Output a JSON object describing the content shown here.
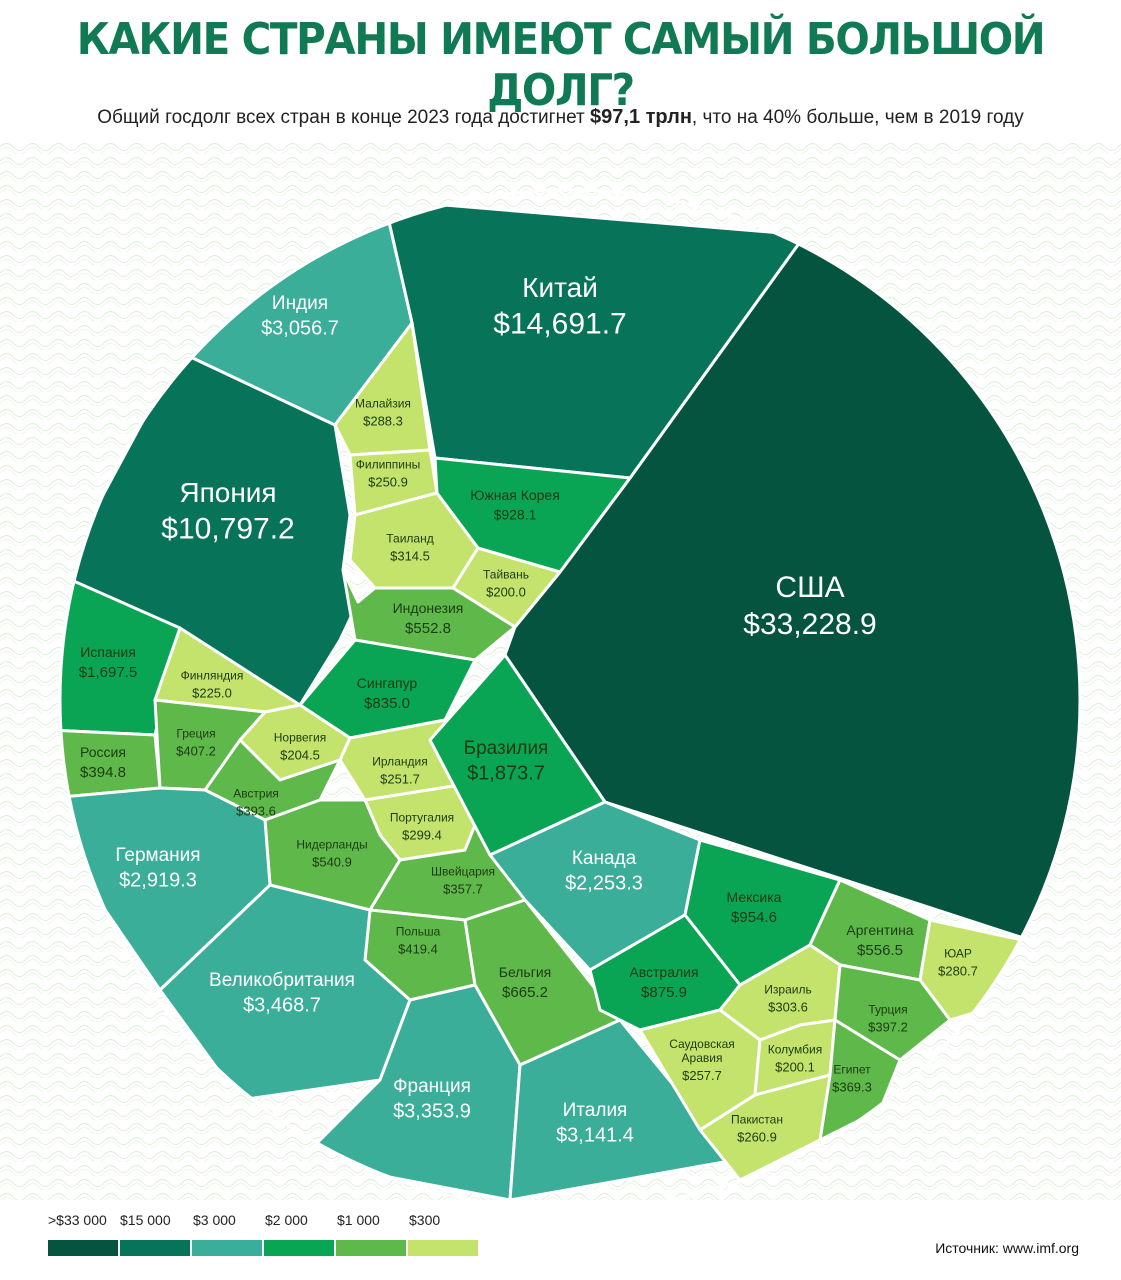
{
  "header": {
    "title": "КАКИЕ СТРАНЫ ИМЕЮТ САМЫЙ БОЛЬШОЙ ДОЛГ?",
    "subtitle_pre": "Общий госдолг всех стран в конце 2023 года достигнет ",
    "subtitle_bold": "$97,1 трлн",
    "subtitle_post": ", что на 40% больше, чем в 2019 году"
  },
  "colors": {
    "tier1": "#04543f",
    "tier2": "#07745a",
    "tier3": "#3aae98",
    "tier4": "#0aa554",
    "tier5": "#5fb84a",
    "tier6": "#c4e36c"
  },
  "chart_data": {
    "type": "voronoi-treemap",
    "unit": "$ млрд",
    "countries": [
      {
        "name": "США",
        "value": "$33,228.9",
        "tier": 1
      },
      {
        "name": "Китай",
        "value": "$14,691.7",
        "tier": 2
      },
      {
        "name": "Япония",
        "value": "$10,797.2",
        "tier": 2
      },
      {
        "name": "Индия",
        "value": "$3,056.7",
        "tier": 3
      },
      {
        "name": "Малайзия",
        "value": "$288.3",
        "tier": 6
      },
      {
        "name": "Филиппины",
        "value": "$250.9",
        "tier": 6
      },
      {
        "name": "Таиланд",
        "value": "$314.5",
        "tier": 6
      },
      {
        "name": "Тайвань",
        "value": "$200.0",
        "tier": 6
      },
      {
        "name": "Южная Корея",
        "value": "$928.1",
        "tier": 4
      },
      {
        "name": "Индонезия",
        "value": "$552.8",
        "tier": 5
      },
      {
        "name": "Сингапур",
        "value": "$835.0",
        "tier": 4
      },
      {
        "name": "Испания",
        "value": "$1,697.5",
        "tier": 4
      },
      {
        "name": "Финляндия",
        "value": "$225.0",
        "tier": 6
      },
      {
        "name": "Россия",
        "value": "$394.8",
        "tier": 5
      },
      {
        "name": "Греция",
        "value": "$407.2",
        "tier": 5
      },
      {
        "name": "Норвегия",
        "value": "$204.5",
        "tier": 6
      },
      {
        "name": "Ирландия",
        "value": "$251.7",
        "tier": 6
      },
      {
        "name": "Австрия",
        "value": "$393.6",
        "tier": 5
      },
      {
        "name": "Португалия",
        "value": "$299.4",
        "tier": 6
      },
      {
        "name": "Нидерланды",
        "value": "$540.9",
        "tier": 5
      },
      {
        "name": "Швейцария",
        "value": "$357.7",
        "tier": 5
      },
      {
        "name": "Германия",
        "value": "$2,919.3",
        "tier": 3
      },
      {
        "name": "Польша",
        "value": "$419.4",
        "tier": 5
      },
      {
        "name": "Бельгия",
        "value": "$665.2",
        "tier": 5
      },
      {
        "name": "Великобритания",
        "value": "$3,468.7",
        "tier": 3
      },
      {
        "name": "Франция",
        "value": "$3,353.9",
        "tier": 3
      },
      {
        "name": "Италия",
        "value": "$3,141.4",
        "tier": 3
      },
      {
        "name": "Бразилия",
        "value": "$1,873.7",
        "tier": 4
      },
      {
        "name": "Канада",
        "value": "$2,253.3",
        "tier": 3
      },
      {
        "name": "Мексика",
        "value": "$954.6",
        "tier": 4
      },
      {
        "name": "Аргентина",
        "value": "$556.5",
        "tier": 5
      },
      {
        "name": "ЮАР",
        "value": "$280.7",
        "tier": 6
      },
      {
        "name": "Австралия",
        "value": "$875.9",
        "tier": 4
      },
      {
        "name": "Израиль",
        "value": "$303.6",
        "tier": 6
      },
      {
        "name": "Турция",
        "value": "$397.2",
        "tier": 5
      },
      {
        "name": "Саудовская Аравия",
        "value": "$257.7",
        "tier": 6
      },
      {
        "name": "Колумбия",
        "value": "$200.1",
        "tier": 6
      },
      {
        "name": "Египет",
        "value": "$369.3",
        "tier": 5
      },
      {
        "name": "Пакистан",
        "value": "$260.9",
        "tier": 6
      }
    ],
    "legend": [
      {
        "label": ">$33 000",
        "tier": 1
      },
      {
        "label": "$15 000",
        "tier": 2
      },
      {
        "label": "$3 000",
        "tier": 3
      },
      {
        "label": "$2 000",
        "tier": 4
      },
      {
        "label": "$1 000",
        "tier": 5
      },
      {
        "label": "$300",
        "tier": 6
      }
    ]
  },
  "footer": {
    "source": "Источник: www.imf.org"
  }
}
